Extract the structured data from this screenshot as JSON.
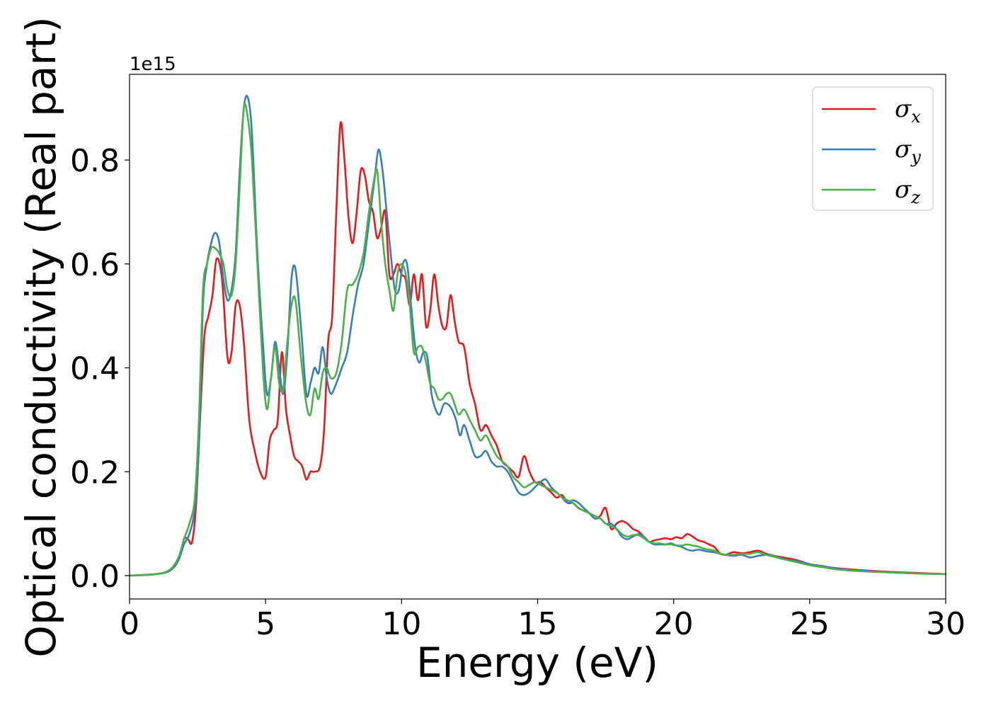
{
  "chart_data": {
    "type": "line",
    "xlabel": "Energy (eV)",
    "ylabel": "Optical conductivity (Real part)",
    "y_offset_label": "1e15",
    "xlim": [
      0,
      30
    ],
    "ylim": [
      -0.045,
      0.965
    ],
    "x_ticks": [
      0,
      5,
      10,
      15,
      20,
      25,
      30
    ],
    "x_tick_labels": [
      "0",
      "5",
      "10",
      "15",
      "20",
      "25",
      "30"
    ],
    "y_ticks": [
      0.0,
      0.2,
      0.4,
      0.6,
      0.8
    ],
    "y_tick_labels": [
      "0.0",
      "0.2",
      "0.4",
      "0.6",
      "0.8"
    ],
    "grid": false,
    "legend_position": "top-right",
    "series": [
      {
        "name": "σx",
        "legend_symbol": "σ",
        "legend_sub": "x",
        "color": "#e41a1c",
        "x": [
          0,
          1,
          1.5,
          1.8,
          2.0,
          2.15,
          2.3,
          2.45,
          2.6,
          2.75,
          2.9,
          3.05,
          3.2,
          3.4,
          3.6,
          3.75,
          3.9,
          4.05,
          4.2,
          4.4,
          4.6,
          4.8,
          5.0,
          5.15,
          5.3,
          5.45,
          5.6,
          5.75,
          5.9,
          6.05,
          6.2,
          6.35,
          6.5,
          6.65,
          6.8,
          7.0,
          7.15,
          7.3,
          7.45,
          7.6,
          7.75,
          7.9,
          8.05,
          8.2,
          8.35,
          8.5,
          8.65,
          8.8,
          8.95,
          9.1,
          9.25,
          9.4,
          9.55,
          9.7,
          9.85,
          10.0,
          10.15,
          10.3,
          10.45,
          10.6,
          10.75,
          10.9,
          11.05,
          11.2,
          11.35,
          11.5,
          11.65,
          11.8,
          11.95,
          12.1,
          12.3,
          12.5,
          12.7,
          12.9,
          13.1,
          13.3,
          13.5,
          13.7,
          13.9,
          14.1,
          14.3,
          14.5,
          14.7,
          14.9,
          15.1,
          15.3,
          15.5,
          15.7,
          15.9,
          16.1,
          16.3,
          16.5,
          16.7,
          16.9,
          17.1,
          17.3,
          17.5,
          17.7,
          17.9,
          18.1,
          18.3,
          18.5,
          18.7,
          18.9,
          19.1,
          19.3,
          19.5,
          19.7,
          19.9,
          20.1,
          20.3,
          20.5,
          20.7,
          20.9,
          21.1,
          21.3,
          21.5,
          21.7,
          21.9,
          22.2,
          22.5,
          22.8,
          23.1,
          23.4,
          23.7,
          24.0,
          24.5,
          25.0,
          25.5,
          26.0,
          27.0,
          28.0,
          29.0,
          30.0
        ],
        "y": [
          0.0,
          0.003,
          0.01,
          0.03,
          0.07,
          0.07,
          0.065,
          0.14,
          0.31,
          0.46,
          0.5,
          0.54,
          0.61,
          0.57,
          0.42,
          0.43,
          0.52,
          0.52,
          0.45,
          0.3,
          0.24,
          0.2,
          0.19,
          0.26,
          0.28,
          0.3,
          0.43,
          0.32,
          0.27,
          0.23,
          0.22,
          0.21,
          0.185,
          0.2,
          0.2,
          0.21,
          0.28,
          0.45,
          0.5,
          0.7,
          0.87,
          0.8,
          0.69,
          0.64,
          0.7,
          0.78,
          0.77,
          0.72,
          0.7,
          0.65,
          0.67,
          0.7,
          0.58,
          0.58,
          0.6,
          0.58,
          0.57,
          0.52,
          0.58,
          0.53,
          0.58,
          0.48,
          0.51,
          0.58,
          0.52,
          0.48,
          0.48,
          0.54,
          0.49,
          0.45,
          0.44,
          0.37,
          0.33,
          0.28,
          0.29,
          0.27,
          0.25,
          0.22,
          0.21,
          0.2,
          0.19,
          0.23,
          0.2,
          0.18,
          0.18,
          0.17,
          0.16,
          0.15,
          0.155,
          0.14,
          0.14,
          0.13,
          0.125,
          0.12,
          0.11,
          0.115,
          0.13,
          0.09,
          0.1,
          0.105,
          0.1,
          0.09,
          0.085,
          0.075,
          0.065,
          0.068,
          0.07,
          0.072,
          0.07,
          0.074,
          0.072,
          0.08,
          0.075,
          0.068,
          0.065,
          0.06,
          0.055,
          0.043,
          0.04,
          0.045,
          0.043,
          0.045,
          0.048,
          0.042,
          0.038,
          0.035,
          0.03,
          0.022,
          0.018,
          0.014,
          0.01,
          0.007,
          0.005,
          0.003
        ]
      },
      {
        "name": "σy",
        "legend_symbol": "σ",
        "legend_sub": "y",
        "color": "#377eb8",
        "x": [
          0,
          1,
          1.5,
          1.8,
          2.0,
          2.2,
          2.4,
          2.55,
          2.7,
          2.85,
          3.0,
          3.15,
          3.3,
          3.45,
          3.6,
          3.75,
          3.9,
          4.05,
          4.2,
          4.35,
          4.5,
          4.7,
          4.9,
          5.05,
          5.2,
          5.35,
          5.5,
          5.65,
          5.8,
          5.95,
          6.1,
          6.3,
          6.5,
          6.65,
          6.8,
          6.95,
          7.1,
          7.25,
          7.4,
          7.6,
          7.8,
          8.0,
          8.2,
          8.4,
          8.6,
          8.8,
          9.0,
          9.15,
          9.3,
          9.45,
          9.6,
          9.75,
          9.9,
          10.05,
          10.2,
          10.35,
          10.5,
          10.65,
          10.8,
          10.95,
          11.1,
          11.25,
          11.4,
          11.55,
          11.7,
          11.85,
          12.0,
          12.15,
          12.3,
          12.5,
          12.7,
          12.9,
          13.1,
          13.3,
          13.5,
          13.7,
          13.9,
          14.1,
          14.3,
          14.5,
          14.7,
          14.9,
          15.1,
          15.3,
          15.5,
          15.7,
          15.9,
          16.1,
          16.3,
          16.5,
          16.7,
          16.9,
          17.1,
          17.3,
          17.5,
          17.7,
          17.9,
          18.1,
          18.3,
          18.5,
          18.7,
          18.9,
          19.1,
          19.3,
          19.5,
          19.7,
          19.9,
          20.1,
          20.3,
          20.5,
          20.7,
          20.9,
          21.1,
          21.3,
          21.5,
          21.7,
          21.9,
          22.2,
          22.5,
          22.8,
          23.1,
          23.4,
          23.7,
          24.0,
          24.5,
          25.0,
          25.5,
          26.0,
          27.0,
          28.0,
          29.0,
          30.0
        ],
        "y": [
          0.0,
          0.003,
          0.01,
          0.03,
          0.06,
          0.08,
          0.13,
          0.25,
          0.52,
          0.6,
          0.64,
          0.66,
          0.64,
          0.57,
          0.53,
          0.55,
          0.62,
          0.78,
          0.9,
          0.92,
          0.85,
          0.62,
          0.45,
          0.35,
          0.38,
          0.45,
          0.4,
          0.35,
          0.43,
          0.57,
          0.59,
          0.48,
          0.35,
          0.37,
          0.4,
          0.39,
          0.44,
          0.38,
          0.35,
          0.37,
          0.4,
          0.43,
          0.5,
          0.56,
          0.6,
          0.68,
          0.76,
          0.82,
          0.78,
          0.7,
          0.62,
          0.55,
          0.55,
          0.6,
          0.6,
          0.52,
          0.44,
          0.41,
          0.43,
          0.42,
          0.35,
          0.32,
          0.31,
          0.33,
          0.33,
          0.32,
          0.3,
          0.27,
          0.29,
          0.26,
          0.23,
          0.23,
          0.24,
          0.22,
          0.21,
          0.21,
          0.2,
          0.18,
          0.16,
          0.155,
          0.16,
          0.17,
          0.18,
          0.185,
          0.17,
          0.16,
          0.15,
          0.14,
          0.145,
          0.14,
          0.13,
          0.12,
          0.11,
          0.11,
          0.1,
          0.1,
          0.09,
          0.075,
          0.07,
          0.075,
          0.08,
          0.075,
          0.065,
          0.06,
          0.06,
          0.06,
          0.062,
          0.058,
          0.055,
          0.05,
          0.048,
          0.05,
          0.048,
          0.046,
          0.045,
          0.042,
          0.04,
          0.038,
          0.04,
          0.035,
          0.038,
          0.04,
          0.038,
          0.032,
          0.028,
          0.022,
          0.018,
          0.013,
          0.009,
          0.006,
          0.004,
          0.003
        ]
      },
      {
        "name": "σz",
        "legend_symbol": "σ",
        "legend_sub": "z",
        "color": "#4daf4a",
        "x": [
          0,
          1,
          1.5,
          1.8,
          2.0,
          2.2,
          2.4,
          2.55,
          2.7,
          2.85,
          3.0,
          3.15,
          3.3,
          3.45,
          3.6,
          3.75,
          3.9,
          4.05,
          4.2,
          4.35,
          4.5,
          4.7,
          4.9,
          5.05,
          5.2,
          5.35,
          5.5,
          5.65,
          5.8,
          5.95,
          6.1,
          6.3,
          6.5,
          6.65,
          6.8,
          6.95,
          7.1,
          7.25,
          7.4,
          7.6,
          7.8,
          8.0,
          8.2,
          8.4,
          8.6,
          8.8,
          8.95,
          9.1,
          9.25,
          9.4,
          9.55,
          9.7,
          9.85,
          10.0,
          10.15,
          10.3,
          10.45,
          10.6,
          10.75,
          10.9,
          11.05,
          11.2,
          11.35,
          11.5,
          11.65,
          11.8,
          11.95,
          12.1,
          12.3,
          12.5,
          12.7,
          12.9,
          13.1,
          13.3,
          13.5,
          13.7,
          13.9,
          14.1,
          14.3,
          14.5,
          14.7,
          14.9,
          15.1,
          15.3,
          15.5,
          15.7,
          15.9,
          16.1,
          16.3,
          16.5,
          16.7,
          16.9,
          17.1,
          17.3,
          17.5,
          17.7,
          17.9,
          18.1,
          18.3,
          18.5,
          18.7,
          18.9,
          19.1,
          19.3,
          19.5,
          19.7,
          19.9,
          20.1,
          20.3,
          20.5,
          20.7,
          20.9,
          21.1,
          21.3,
          21.5,
          21.7,
          21.9,
          22.2,
          22.5,
          22.8,
          23.1,
          23.4,
          23.7,
          24.0,
          24.5,
          25.0,
          25.5,
          26.0,
          27.0,
          28.0,
          29.0,
          30.0
        ],
        "y": [
          0.0,
          0.003,
          0.012,
          0.035,
          0.07,
          0.1,
          0.15,
          0.3,
          0.55,
          0.6,
          0.63,
          0.63,
          0.62,
          0.6,
          0.55,
          0.54,
          0.6,
          0.75,
          0.9,
          0.88,
          0.8,
          0.6,
          0.4,
          0.32,
          0.38,
          0.44,
          0.37,
          0.36,
          0.45,
          0.52,
          0.53,
          0.42,
          0.33,
          0.31,
          0.36,
          0.34,
          0.39,
          0.4,
          0.38,
          0.39,
          0.45,
          0.55,
          0.56,
          0.58,
          0.62,
          0.7,
          0.75,
          0.78,
          0.68,
          0.6,
          0.55,
          0.51,
          0.58,
          0.6,
          0.58,
          0.52,
          0.43,
          0.44,
          0.44,
          0.41,
          0.37,
          0.36,
          0.34,
          0.34,
          0.35,
          0.35,
          0.33,
          0.31,
          0.32,
          0.3,
          0.28,
          0.26,
          0.27,
          0.25,
          0.23,
          0.22,
          0.21,
          0.19,
          0.18,
          0.17,
          0.175,
          0.18,
          0.175,
          0.17,
          0.165,
          0.16,
          0.15,
          0.145,
          0.14,
          0.13,
          0.125,
          0.12,
          0.115,
          0.11,
          0.1,
          0.095,
          0.09,
          0.08,
          0.075,
          0.078,
          0.078,
          0.072,
          0.065,
          0.062,
          0.062,
          0.06,
          0.06,
          0.058,
          0.058,
          0.06,
          0.058,
          0.056,
          0.052,
          0.05,
          0.048,
          0.042,
          0.04,
          0.04,
          0.042,
          0.042,
          0.045,
          0.04,
          0.036,
          0.032,
          0.026,
          0.02,
          0.016,
          0.012,
          0.008,
          0.006,
          0.004,
          0.003
        ]
      }
    ]
  }
}
